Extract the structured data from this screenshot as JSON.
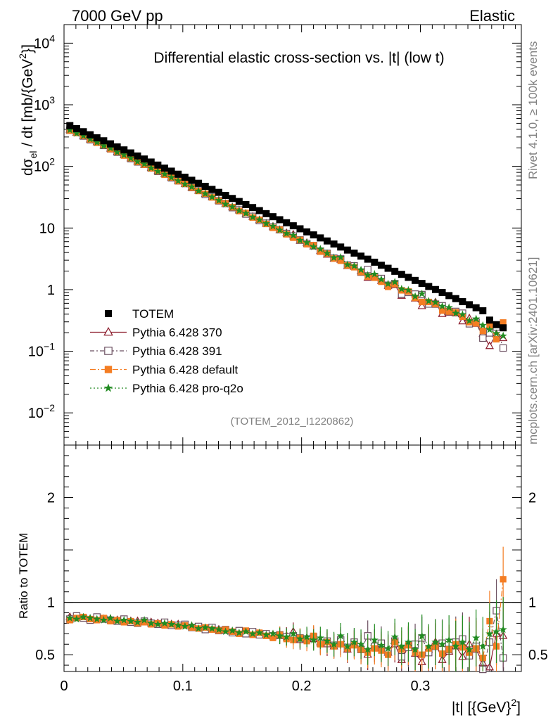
{
  "header": {
    "left": "7000 GeV pp",
    "right": "Elastic"
  },
  "side_text": {
    "rivet": "Rivet 4.1.0, ≥ 100k events",
    "mcplots": "mcplots.cern.ch [arXiv:2401.10621]"
  },
  "chart_data": {
    "type": "scatter",
    "title": "Differential elastic cross-section vs. |t| (low t)",
    "analysis_id": "(TOTEM_2012_I1220862)",
    "top_panel": {
      "yscale": "log",
      "ylim": [
        0.003,
        20000
      ],
      "ylabel": {
        "main": "dσ",
        "sub": "el",
        "rest": " / dt [mb/{GeV",
        "sup": "2",
        "end": "}]"
      },
      "yticks": [
        {
          "value": 0.01,
          "base": "10",
          "exp": "−2"
        },
        {
          "value": 0.1,
          "base": "10",
          "exp": "−1"
        },
        {
          "value": 1,
          "base": "1",
          "exp": ""
        },
        {
          "value": 10,
          "base": "10",
          "exp": ""
        },
        {
          "value": 100,
          "base": "10",
          "exp": "2"
        },
        {
          "value": 1000,
          "base": "10",
          "exp": "3"
        },
        {
          "value": 10000,
          "base": "10",
          "exp": "4"
        }
      ]
    },
    "ratio_panel": {
      "ylabel": "Ratio to TOTEM",
      "ylim": [
        0.34,
        2.5
      ],
      "yticks": [
        {
          "value": 0.5,
          "label": "0.5"
        },
        {
          "value": 1,
          "label": "1"
        },
        {
          "value": 2,
          "label": "2"
        }
      ]
    },
    "xlim": [
      0,
      0.385
    ],
    "xticks": [
      {
        "value": 0,
        "label": "0"
      },
      {
        "value": 0.1,
        "label": "0.1"
      },
      {
        "value": 0.2,
        "label": "0.2"
      },
      {
        "value": 0.3,
        "label": "0.3"
      }
    ],
    "xlabel": {
      "main": "|t| [{GeV}",
      "sup": "2",
      "end": "]"
    },
    "data": {
      "name": "TOTEM",
      "color": "#000000",
      "t_start": 0.0049,
      "t_step": 0.0057,
      "n_points": 65,
      "slope": 19.9,
      "norm": 506,
      "last_points": [
        0.32,
        0.27,
        0.24
      ],
      "note": "dσ/dt ≈ norm·exp(−slope·t), read from the plot"
    },
    "series": [
      {
        "name": "Pythia 6.428 370",
        "color": "#8b1a2a",
        "marker": "open-triangle",
        "dash": "",
        "ratio": [
          0.86,
          0.86,
          0.85,
          0.84,
          0.85,
          0.84,
          0.84,
          0.83,
          0.83,
          0.82,
          0.82,
          0.81,
          0.81,
          0.8,
          0.8,
          0.79,
          0.79,
          0.78,
          0.77,
          0.76,
          0.75,
          0.75,
          0.74,
          0.73,
          0.72,
          0.72,
          0.71,
          0.71,
          0.7,
          0.69,
          0.69,
          0.68,
          0.68,
          0.72,
          0.64,
          0.66,
          0.65,
          0.62,
          0.6,
          0.58,
          0.62,
          0.55,
          0.6,
          0.57,
          0.5,
          0.59,
          0.56,
          0.52,
          0.6,
          0.45,
          0.58,
          0.51,
          0.43,
          0.55,
          0.62,
          0.45,
          0.53,
          0.58,
          0.48,
          0.6,
          0.55,
          0.42,
          0.38,
          0.7,
          0.68
        ]
      },
      {
        "name": "Pythia 6.428 391",
        "color": "#6b4f60",
        "marker": "open-square",
        "dash": "6,3,2,3",
        "ratio": [
          0.84,
          0.87,
          0.85,
          0.83,
          0.86,
          0.84,
          0.83,
          0.82,
          0.84,
          0.81,
          0.8,
          0.82,
          0.8,
          0.79,
          0.81,
          0.78,
          0.78,
          0.79,
          0.76,
          0.77,
          0.74,
          0.76,
          0.73,
          0.74,
          0.71,
          0.73,
          0.7,
          0.72,
          0.69,
          0.7,
          0.68,
          0.69,
          0.67,
          0.68,
          0.66,
          0.65,
          0.67,
          0.61,
          0.63,
          0.59,
          0.64,
          0.57,
          0.62,
          0.55,
          0.68,
          0.58,
          0.61,
          0.53,
          0.63,
          0.48,
          0.57,
          0.6,
          0.66,
          0.52,
          0.58,
          0.61,
          0.55,
          0.62,
          0.65,
          0.49,
          0.58,
          0.36,
          0.62,
          0.92,
          0.47
        ]
      },
      {
        "name": "Pythia 6.428 default",
        "color": "#f47d23",
        "marker": "filled-square",
        "dash": "8,3,2,3",
        "ratio": [
          0.83,
          0.85,
          0.86,
          0.84,
          0.83,
          0.85,
          0.82,
          0.83,
          0.81,
          0.82,
          0.8,
          0.81,
          0.79,
          0.8,
          0.78,
          0.79,
          0.77,
          0.78,
          0.76,
          0.75,
          0.76,
          0.74,
          0.73,
          0.74,
          0.72,
          0.7,
          0.73,
          0.69,
          0.71,
          0.68,
          0.66,
          0.69,
          0.65,
          0.64,
          0.66,
          0.63,
          0.68,
          0.6,
          0.62,
          0.58,
          0.6,
          0.56,
          0.59,
          0.55,
          0.52,
          0.56,
          0.54,
          0.5,
          0.62,
          0.55,
          0.59,
          0.52,
          0.5,
          0.56,
          0.58,
          0.51,
          0.55,
          0.6,
          0.57,
          0.52,
          0.56,
          0.47,
          0.82,
          0.58,
          1.22
        ]
      },
      {
        "name": "Pythia 6.428 pro-q2o",
        "color": "#218b21",
        "marker": "star",
        "dash": "2,3",
        "ratio": [
          0.85,
          0.84,
          0.86,
          0.85,
          0.84,
          0.83,
          0.85,
          0.82,
          0.83,
          0.82,
          0.81,
          0.83,
          0.8,
          0.79,
          0.8,
          0.79,
          0.78,
          0.77,
          0.78,
          0.75,
          0.76,
          0.75,
          0.74,
          0.72,
          0.73,
          0.71,
          0.72,
          0.7,
          0.71,
          0.69,
          0.7,
          0.68,
          0.67,
          0.7,
          0.65,
          0.67,
          0.64,
          0.66,
          0.63,
          0.6,
          0.68,
          0.58,
          0.62,
          0.6,
          0.55,
          0.64,
          0.59,
          0.56,
          0.67,
          0.58,
          0.62,
          0.55,
          0.68,
          0.58,
          0.62,
          0.6,
          0.64,
          0.58,
          0.62,
          0.55,
          0.66,
          0.58,
          0.7,
          0.72,
          0.74
        ]
      }
    ]
  }
}
